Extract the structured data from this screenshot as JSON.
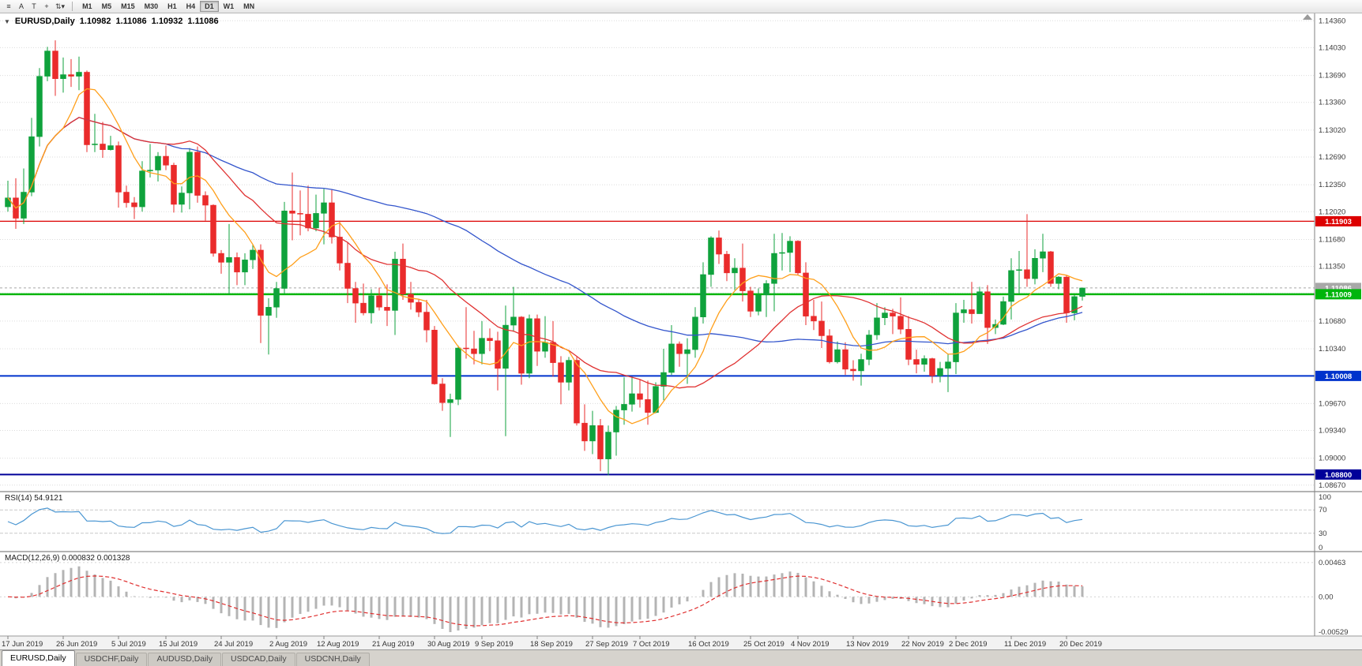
{
  "window": {
    "title": "EURUSD,Daily"
  },
  "toolbar": {
    "icons": [
      {
        "name": "menu-icon",
        "glyph": "≡"
      },
      {
        "name": "cursor-icon",
        "glyph": "A"
      },
      {
        "name": "text-label-icon",
        "glyph": "T"
      },
      {
        "name": "crosshair-icon",
        "glyph": "+"
      },
      {
        "name": "draw-tools-icon",
        "glyph": "⇅▾"
      }
    ],
    "timeframes": [
      "M1",
      "M5",
      "M15",
      "M30",
      "H1",
      "H4",
      "D1",
      "W1",
      "MN"
    ],
    "active_timeframe": "D1"
  },
  "header": {
    "collapse_icon": "▼",
    "symbol": "EURUSD,Daily",
    "open": "1.10982",
    "high": "1.11086",
    "low": "1.10932",
    "close": "1.11086"
  },
  "chart_data": {
    "type": "candlestick",
    "title": "EURUSD Daily",
    "up_color": "#0fa23c",
    "down_color": "#ea2b2b",
    "price_range": {
      "top": 1.1445,
      "bottom": 1.086
    },
    "price_scale_labels": [
      "1.14360",
      "1.14030",
      "1.13690",
      "1.13360",
      "1.13020",
      "1.12690",
      "1.12350",
      "1.12020",
      "1.11680",
      "1.11350",
      "1.11020",
      "1.10680",
      "1.10340",
      "1.10010",
      "1.09670",
      "1.09340",
      "1.09000",
      "1.08670"
    ],
    "date_labels": [
      {
        "index": 0,
        "label": "17 Jun 2019"
      },
      {
        "index": 7,
        "label": "26 Jun 2019"
      },
      {
        "index": 14,
        "label": "5 Jul 2019"
      },
      {
        "index": 20,
        "label": "15 Jul 2019"
      },
      {
        "index": 27,
        "label": "24 Jul 2019"
      },
      {
        "index": 34,
        "label": "2 Aug 2019"
      },
      {
        "index": 40,
        "label": "12 Aug 2019"
      },
      {
        "index": 47,
        "label": "21 Aug 2019"
      },
      {
        "index": 54,
        "label": "30 Aug 2019"
      },
      {
        "index": 60,
        "label": "9 Sep 2019"
      },
      {
        "index": 67,
        "label": "18 Sep 2019"
      },
      {
        "index": 74,
        "label": "27 Sep 2019"
      },
      {
        "index": 80,
        "label": "7 Oct 2019"
      },
      {
        "index": 87,
        "label": "16 Oct 2019"
      },
      {
        "index": 94,
        "label": "25 Oct 2019"
      },
      {
        "index": 100,
        "label": "4 Nov 2019"
      },
      {
        "index": 107,
        "label": "13 Nov 2019"
      },
      {
        "index": 114,
        "label": "22 Nov 2019"
      },
      {
        "index": 120,
        "label": "2 Dec 2019"
      },
      {
        "index": 127,
        "label": "11 Dec 2019"
      },
      {
        "index": 134,
        "label": "20 Dec 2019"
      }
    ],
    "candles": [
      [
        1.1208,
        1.124,
        1.1202,
        1.1219
      ],
      [
        1.1219,
        1.1243,
        1.1181,
        1.1194
      ],
      [
        1.1194,
        1.1255,
        1.1187,
        1.1226
      ],
      [
        1.1226,
        1.1317,
        1.1221,
        1.1294
      ],
      [
        1.1294,
        1.1378,
        1.1282,
        1.1368
      ],
      [
        1.1368,
        1.1404,
        1.1362,
        1.1399
      ],
      [
        1.1399,
        1.1412,
        1.1344,
        1.1365
      ],
      [
        1.1365,
        1.1391,
        1.1348,
        1.137
      ],
      [
        1.137,
        1.1389,
        1.1355,
        1.1368
      ],
      [
        1.1368,
        1.1392,
        1.1351,
        1.1373
      ],
      [
        1.1373,
        1.1375,
        1.1275,
        1.1284
      ],
      [
        1.1284,
        1.1322,
        1.1275,
        1.1285
      ],
      [
        1.1285,
        1.1312,
        1.1268,
        1.1278
      ],
      [
        1.1278,
        1.1295,
        1.1277,
        1.1283
      ],
      [
        1.1283,
        1.1288,
        1.1207,
        1.1226
      ],
      [
        1.1226,
        1.1234,
        1.1207,
        1.1213
      ],
      [
        1.1213,
        1.122,
        1.1193,
        1.1208
      ],
      [
        1.1208,
        1.1264,
        1.1202,
        1.1252
      ],
      [
        1.1252,
        1.1285,
        1.1244,
        1.1253
      ],
      [
        1.1253,
        1.1275,
        1.1239,
        1.127
      ],
      [
        1.127,
        1.1283,
        1.1253,
        1.1259
      ],
      [
        1.1259,
        1.1262,
        1.1201,
        1.1211
      ],
      [
        1.1211,
        1.1233,
        1.1201,
        1.1225
      ],
      [
        1.1225,
        1.128,
        1.1205,
        1.1275
      ],
      [
        1.1275,
        1.1282,
        1.1213,
        1.1222
      ],
      [
        1.1222,
        1.1227,
        1.1191,
        1.121
      ],
      [
        1.121,
        1.1211,
        1.1147,
        1.1151
      ],
      [
        1.1151,
        1.1155,
        1.1126,
        1.114
      ],
      [
        1.114,
        1.1187,
        1.1101,
        1.1146
      ],
      [
        1.1146,
        1.1152,
        1.1112,
        1.1128
      ],
      [
        1.1128,
        1.1151,
        1.1112,
        1.1143
      ],
      [
        1.1143,
        1.1162,
        1.1132,
        1.1155
      ],
      [
        1.1155,
        1.1162,
        1.1041,
        1.1075
      ],
      [
        1.1075,
        1.1096,
        1.1027,
        1.1085
      ],
      [
        1.1085,
        1.1116,
        1.1072,
        1.1108
      ],
      [
        1.1108,
        1.1214,
        1.1101,
        1.1203
      ],
      [
        1.1203,
        1.125,
        1.1167,
        1.12
      ],
      [
        1.12,
        1.1228,
        1.1173,
        1.1199
      ],
      [
        1.1199,
        1.1234,
        1.1178,
        1.1182
      ],
      [
        1.1182,
        1.1223,
        1.1178,
        1.12
      ],
      [
        1.12,
        1.123,
        1.1162,
        1.1213
      ],
      [
        1.1213,
        1.1229,
        1.1163,
        1.1171
      ],
      [
        1.1171,
        1.1191,
        1.113,
        1.1139
      ],
      [
        1.1139,
        1.1165,
        1.109,
        1.1108
      ],
      [
        1.1108,
        1.1116,
        1.1066,
        1.109
      ],
      [
        1.109,
        1.1114,
        1.1075,
        1.1078
      ],
      [
        1.1078,
        1.1107,
        1.1065,
        1.1099
      ],
      [
        1.1099,
        1.1109,
        1.1081,
        1.1085
      ],
      [
        1.1085,
        1.1113,
        1.1062,
        1.1081
      ],
      [
        1.1081,
        1.1153,
        1.1051,
        1.1144
      ],
      [
        1.1144,
        1.1163,
        1.1094,
        1.1101
      ],
      [
        1.1101,
        1.1116,
        1.1082,
        1.1091
      ],
      [
        1.1091,
        1.1095,
        1.1073,
        1.1079
      ],
      [
        1.1079,
        1.1094,
        1.1042,
        1.1057
      ],
      [
        1.1057,
        1.1062,
        1.099,
        1.0991
      ],
      [
        1.0991,
        1.0998,
        1.0958,
        1.0968
      ],
      [
        1.0968,
        1.0979,
        1.0926,
        1.0972
      ],
      [
        1.0972,
        1.1038,
        1.0965,
        1.1035
      ],
      [
        1.1035,
        1.1085,
        1.1022,
        1.1034
      ],
      [
        1.1034,
        1.1056,
        1.1015,
        1.1028
      ],
      [
        1.1028,
        1.1068,
        1.1015,
        1.1047
      ],
      [
        1.1047,
        1.1059,
        1.1031,
        1.1044
      ],
      [
        1.1044,
        1.1055,
        1.0983,
        1.101
      ],
      [
        1.101,
        1.1087,
        1.0927,
        1.1063
      ],
      [
        1.1063,
        1.111,
        1.1055,
        1.1073
      ],
      [
        1.1073,
        1.1074,
        1.099,
        1.1004
      ],
      [
        1.1004,
        1.1076,
        1.0998,
        1.1071
      ],
      [
        1.1071,
        1.1076,
        1.1013,
        1.1031
      ],
      [
        1.1031,
        1.1074,
        1.1023,
        1.1042
      ],
      [
        1.1042,
        1.1068,
        1.1,
        1.1017
      ],
      [
        1.1017,
        1.1025,
        1.0966,
        1.0993
      ],
      [
        1.0993,
        1.1024,
        1.0983,
        1.102
      ],
      [
        1.102,
        1.1024,
        1.094,
        1.0943
      ],
      [
        1.0943,
        1.0966,
        1.0909,
        1.0921
      ],
      [
        1.0921,
        1.0958,
        1.0905,
        1.094
      ],
      [
        1.094,
        1.0948,
        1.0884,
        1.0899
      ],
      [
        1.0899,
        1.094,
        1.0879,
        1.0932
      ],
      [
        1.0932,
        1.0964,
        1.0903,
        1.0959
      ],
      [
        1.0959,
        1.0999,
        1.0941,
        1.0966
      ],
      [
        1.0966,
        1.0999,
        1.0957,
        1.0979
      ],
      [
        1.0979,
        1.0996,
        1.0962,
        1.0972
      ],
      [
        1.0972,
        1.0995,
        1.0941,
        1.0956
      ],
      [
        1.0956,
        1.0993,
        1.0955,
        1.0988
      ],
      [
        1.0988,
        1.1034,
        1.0971,
        1.1005
      ],
      [
        1.1005,
        1.1063,
        1.1002,
        1.104
      ],
      [
        1.104,
        1.1043,
        1.1012,
        1.1028
      ],
      [
        1.1028,
        1.1047,
        1.0991,
        1.1033
      ],
      [
        1.1033,
        1.1085,
        1.1023,
        1.1073
      ],
      [
        1.1073,
        1.114,
        1.1065,
        1.1125
      ],
      [
        1.1125,
        1.1172,
        1.111,
        1.117
      ],
      [
        1.117,
        1.1179,
        1.1138,
        1.115
      ],
      [
        1.115,
        1.1154,
        1.1117,
        1.1127
      ],
      [
        1.1127,
        1.1145,
        1.1106,
        1.1133
      ],
      [
        1.1133,
        1.1163,
        1.1092,
        1.1105
      ],
      [
        1.1105,
        1.111,
        1.1073,
        1.108
      ],
      [
        1.108,
        1.1108,
        1.1075,
        1.11
      ],
      [
        1.11,
        1.1118,
        1.1073,
        1.1114
      ],
      [
        1.1114,
        1.1175,
        1.108,
        1.1151
      ],
      [
        1.1151,
        1.1176,
        1.113,
        1.1152
      ],
      [
        1.1152,
        1.1172,
        1.1128,
        1.1166
      ],
      [
        1.1166,
        1.1167,
        1.1125,
        1.1127
      ],
      [
        1.1127,
        1.114,
        1.1063,
        1.1074
      ],
      [
        1.1074,
        1.1094,
        1.1057,
        1.1068
      ],
      [
        1.1068,
        1.1092,
        1.1035,
        1.105
      ],
      [
        1.105,
        1.1058,
        1.1016,
        1.1018
      ],
      [
        1.1018,
        1.1043,
        1.1016,
        1.1033
      ],
      [
        1.1033,
        1.1042,
        1.1002,
        1.1009
      ],
      [
        1.1009,
        1.102,
        1.0995,
        1.1007
      ],
      [
        1.1007,
        1.1028,
        1.0989,
        1.1021
      ],
      [
        1.1021,
        1.1057,
        1.1014,
        1.1051
      ],
      [
        1.1051,
        1.109,
        1.1045,
        1.1072
      ],
      [
        1.1072,
        1.1085,
        1.1063,
        1.1078
      ],
      [
        1.1078,
        1.1083,
        1.1052,
        1.1074
      ],
      [
        1.1074,
        1.1097,
        1.1052,
        1.1058
      ],
      [
        1.1058,
        1.1074,
        1.1014,
        1.1021
      ],
      [
        1.1021,
        1.1033,
        1.1004,
        1.1015
      ],
      [
        1.1015,
        1.1026,
        1.1006,
        1.1022
      ],
      [
        1.1022,
        1.1023,
        1.0992,
        1.1001
      ],
      [
        1.1001,
        1.1018,
        1.0993,
        1.101
      ],
      [
        1.101,
        1.1028,
        1.0981,
        1.1018
      ],
      [
        1.1018,
        1.109,
        1.1003,
        1.1078
      ],
      [
        1.1078,
        1.1094,
        1.1066,
        1.1082
      ],
      [
        1.1082,
        1.1116,
        1.1065,
        1.1077
      ],
      [
        1.1077,
        1.111,
        1.1077,
        1.1104
      ],
      [
        1.1104,
        1.1112,
        1.104,
        1.106
      ],
      [
        1.106,
        1.107,
        1.1052,
        1.1064
      ],
      [
        1.1064,
        1.1098,
        1.1063,
        1.1092
      ],
      [
        1.1092,
        1.1145,
        1.107,
        1.113
      ],
      [
        1.113,
        1.1154,
        1.1102,
        1.1131
      ],
      [
        1.1131,
        1.1199,
        1.111,
        1.112
      ],
      [
        1.112,
        1.1156,
        1.1113,
        1.1145
      ],
      [
        1.1145,
        1.1175,
        1.1128,
        1.1153
      ],
      [
        1.1153,
        1.1154,
        1.111,
        1.1114
      ],
      [
        1.1114,
        1.1123,
        1.1107,
        1.1122
      ],
      [
        1.1122,
        1.1124,
        1.1066,
        1.1078
      ],
      [
        1.1078,
        1.11,
        1.1069,
        1.1098
      ],
      [
        1.10982,
        1.11086,
        1.10932,
        1.11086
      ]
    ],
    "moving_averages": [
      {
        "name": "slow",
        "period": 55,
        "color": "#3355cc"
      },
      {
        "name": "medium",
        "period": 21,
        "color": "#e03232"
      },
      {
        "name": "fast",
        "period": 8,
        "color": "#ff9f1a"
      }
    ],
    "horizontal_lines": [
      {
        "price": 1.11903,
        "label": "1.11903",
        "color": "#dd0000",
        "width": 1.2
      },
      {
        "price": 1.11009,
        "label": "1.11009",
        "color": "#00b50c",
        "width": 2.5
      },
      {
        "price": 1.10008,
        "label": "1.10008",
        "color": "#0033cc",
        "width": 2
      },
      {
        "price": 1.088,
        "label": "1.08800",
        "color": "#000099",
        "width": 2
      }
    ],
    "bid_line": {
      "price": 1.11086,
      "label": "1.11086",
      "color": "#a8a8a8"
    },
    "indicators": {
      "rsi": {
        "label": "RSI(14) 54.9121",
        "period": 14,
        "value": "54.9121",
        "color": "#4a96d2",
        "range": [
          0,
          100
        ],
        "levels": [
          70,
          30
        ],
        "scale": [
          {
            "v": 100,
            "label": "100"
          },
          {
            "v": 70,
            "label": "70"
          },
          {
            "v": 30,
            "label": "30"
          },
          {
            "v": 0,
            "label": "0"
          }
        ]
      },
      "macd": {
        "label": "MACD(12,26,9) 0.000832 0.001328",
        "fast": 12,
        "slow": 26,
        "signal": 9,
        "main_value": "0.000832",
        "signal_value": "0.001328",
        "histogram_color": "#b4b4b4",
        "signal_color": "#e03030",
        "range": [
          -0.00529,
          0.006
        ],
        "scale": [
          {
            "v": 0.00463,
            "label": "0.00463"
          },
          {
            "v": 0,
            "label": "0.00"
          },
          {
            "v": -0.00529,
            "label": "-0.00529"
          }
        ]
      }
    }
  },
  "tabs": [
    {
      "label": "EURUSD,Daily",
      "active": true
    },
    {
      "label": "USDCHF,Daily",
      "active": false
    },
    {
      "label": "AUDUSD,Daily",
      "active": false
    },
    {
      "label": "USDCAD,Daily",
      "active": false
    },
    {
      "label": "USDCNH,Daily",
      "active": false
    }
  ]
}
